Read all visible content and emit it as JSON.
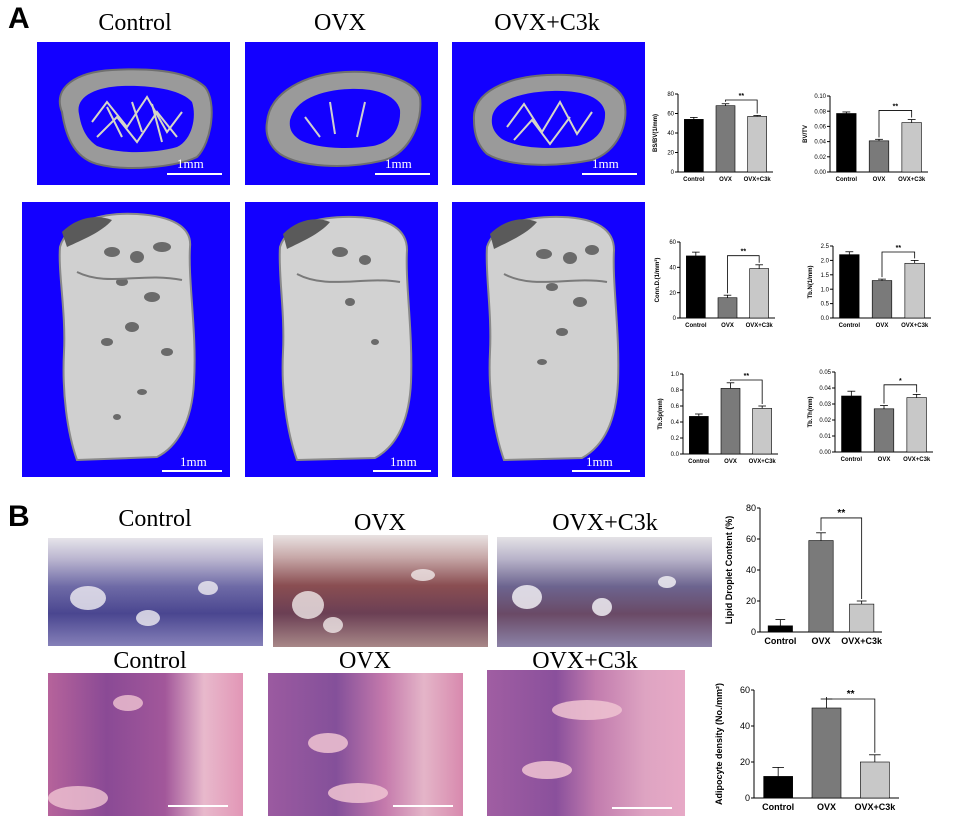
{
  "panel_a": {
    "letter": "A",
    "columns": [
      "Control",
      "OVX",
      "OVX+C3k"
    ],
    "scale_label": "1mm"
  },
  "panel_b": {
    "letter": "B",
    "columns_top": [
      "Control",
      "OVX",
      "OVX+C3k"
    ],
    "columns_bottom": [
      "Control",
      "OVX",
      "OVX+C3k"
    ]
  },
  "colors": {
    "ct_background": "#1300ff",
    "bar_control": "#000000",
    "bar_ovx": "#7a7a7a",
    "bar_c3k": "#c8c8c8"
  },
  "chart_data": [
    {
      "id": "bs-bv",
      "type": "bar",
      "categories": [
        "Control",
        "OVX",
        "OVX+C3k"
      ],
      "values": [
        54,
        68,
        57
      ],
      "errors": [
        2,
        2,
        1
      ],
      "ylabel": "BS/BV(1/mm)",
      "ylim": [
        0,
        80
      ],
      "yticks": [
        "0",
        "20",
        "40",
        "60",
        "80"
      ],
      "significance": {
        "pair": [
          1,
          2
        ],
        "label": "**"
      }
    },
    {
      "id": "bv-tv",
      "type": "bar",
      "categories": [
        "Control",
        "OVX",
        "OVX+C3k"
      ],
      "values": [
        0.077,
        0.041,
        0.065
      ],
      "errors": [
        0.002,
        0.002,
        0.004
      ],
      "ylabel": "BV/TV",
      "ylim": [
        0,
        0.1
      ],
      "yticks": [
        "0.00",
        "0.02",
        "0.04",
        "0.06",
        "0.08",
        "0.10"
      ],
      "significance": {
        "pair": [
          1,
          2
        ],
        "label": "**"
      }
    },
    {
      "id": "conn-d",
      "type": "bar",
      "categories": [
        "Control",
        "OVX",
        "OVX+C3k"
      ],
      "values": [
        49,
        16,
        39
      ],
      "errors": [
        3,
        2,
        3
      ],
      "ylabel": "Conn.D.(1/mm³)",
      "ylim": [
        0,
        60
      ],
      "yticks": [
        "0",
        "20",
        "40",
        "60"
      ],
      "significance": {
        "pair": [
          1,
          2
        ],
        "label": "**"
      }
    },
    {
      "id": "tb-n",
      "type": "bar",
      "categories": [
        "Control",
        "OVX",
        "OVX+C3k"
      ],
      "values": [
        2.2,
        1.3,
        1.9
      ],
      "errors": [
        0.1,
        0.05,
        0.1
      ],
      "ylabel": "Tb.N(1/mm)",
      "ylim": [
        0,
        2.5
      ],
      "yticks": [
        "0.0",
        "0.5",
        "1.0",
        "1.5",
        "2.0",
        "2.5"
      ],
      "significance": {
        "pair": [
          1,
          2
        ],
        "label": "**"
      }
    },
    {
      "id": "tb-sp",
      "type": "bar",
      "categories": [
        "Control",
        "OVX",
        "OVX+C3k"
      ],
      "values": [
        0.47,
        0.82,
        0.57
      ],
      "errors": [
        0.03,
        0.07,
        0.03
      ],
      "ylabel": "Tb.Sp(mm)",
      "ylim": [
        0,
        1.0
      ],
      "yticks": [
        "0.0",
        "0.2",
        "0.4",
        "0.6",
        "0.8",
        "1.0"
      ],
      "significance": {
        "pair": [
          1,
          2
        ],
        "label": "**"
      }
    },
    {
      "id": "tb-th",
      "type": "bar",
      "categories": [
        "Control",
        "OVX",
        "OVX+C3k"
      ],
      "values": [
        0.035,
        0.027,
        0.034
      ],
      "errors": [
        0.003,
        0.002,
        0.002
      ],
      "ylabel": "Tb.Th(mm)",
      "ylim": [
        0,
        0.05
      ],
      "yticks": [
        "0.00",
        "0.01",
        "0.02",
        "0.03",
        "0.04",
        "0.05"
      ],
      "significance": {
        "pair": [
          1,
          2
        ],
        "label": "*"
      }
    },
    {
      "id": "lipid",
      "type": "bar",
      "categories": [
        "Control",
        "OVX",
        "OVX+C3k"
      ],
      "values": [
        4,
        59,
        18
      ],
      "errors": [
        4,
        5,
        2
      ],
      "ylabel": "Lipid Droplet Content (%)",
      "ylim": [
        0,
        80
      ],
      "yticks": [
        "0",
        "20",
        "40",
        "60",
        "80"
      ],
      "significance": {
        "pair": [
          1,
          2
        ],
        "label": "**"
      }
    },
    {
      "id": "adipocyte",
      "type": "bar",
      "categories": [
        "Control",
        "OVX",
        "OVX+C3k"
      ],
      "values": [
        12,
        50,
        20
      ],
      "errors": [
        5,
        5,
        4
      ],
      "ylabel": "Adipocyte density (No./mm²)",
      "ylim": [
        0,
        60
      ],
      "yticks": [
        "0",
        "20",
        "40",
        "60"
      ],
      "significance": {
        "pair": [
          1,
          2
        ],
        "label": "**"
      }
    }
  ]
}
